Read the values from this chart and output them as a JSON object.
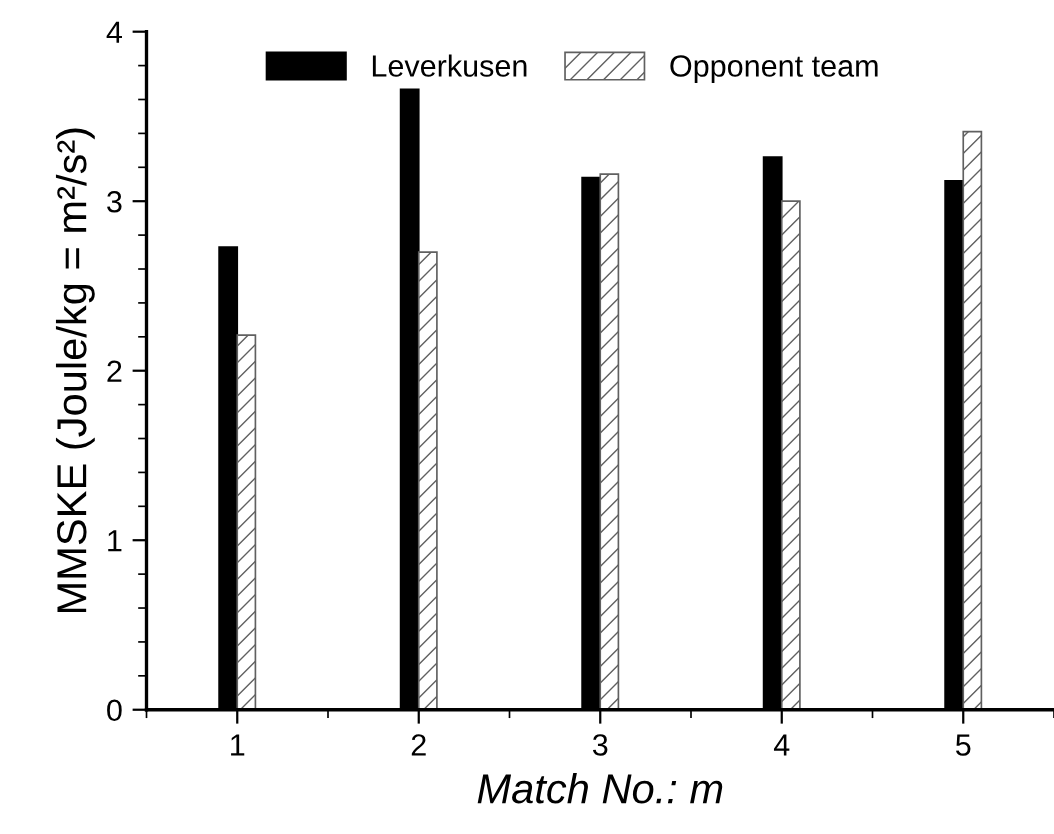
{
  "chart_data": {
    "type": "bar",
    "xlabel": "Match No.: m",
    "ylabel": "MMSKE (Joule/kg = m²/s²)",
    "x": [
      1,
      2,
      3,
      4,
      5
    ],
    "series": [
      {
        "name": "Leverkusen",
        "color": "#000000",
        "values": [
          2.73,
          3.66,
          3.14,
          3.26,
          3.12
        ]
      },
      {
        "name": "Opponent team",
        "color": "#606060",
        "values": [
          2.21,
          2.7,
          3.16,
          3.0,
          3.41
        ]
      }
    ],
    "xlim": [
      0.5,
      5.5
    ],
    "xticks": [
      1,
      2,
      3,
      4,
      5
    ],
    "ylim": [
      0,
      4
    ],
    "yticks": [
      0,
      1,
      2,
      3,
      4
    ],
    "grid": false,
    "legend": "top"
  }
}
